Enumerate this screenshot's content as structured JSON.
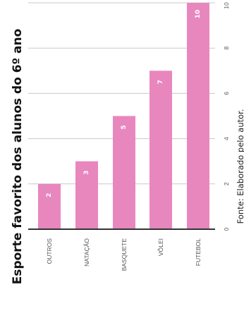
{
  "chart_data": {
    "type": "bar",
    "orientation": "horizontal-bars-image-rotated",
    "title": "Esporte favorito dos alunos do 6º ano",
    "source": "Fonte: Elaborado pelo autor.",
    "categories": [
      "OUTROS",
      "NATAÇÃO",
      "BASQUETE",
      "VÔLEI",
      "FUTEBOL"
    ],
    "values": [
      2,
      3,
      5,
      7,
      10
    ],
    "ticks": [
      0,
      2,
      4,
      6,
      8,
      10
    ],
    "ylim": [
      0,
      10
    ],
    "grid": true,
    "bar_color": "#e887bd",
    "value_label_color": "#ffffff"
  }
}
